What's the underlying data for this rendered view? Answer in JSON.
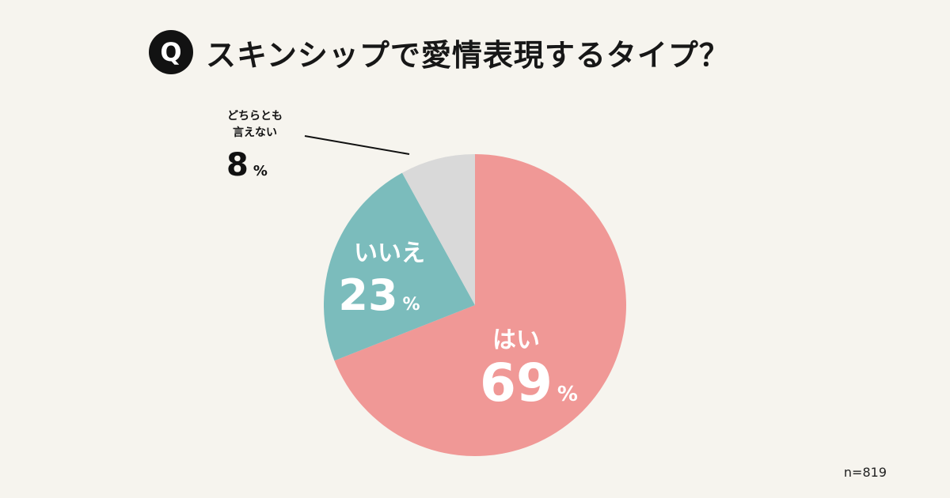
{
  "header": {
    "badge": "Q",
    "title": "スキンシップで愛情表現するタイプ？"
  },
  "sample_size": "n=819",
  "colors": {
    "background": "#f6f4ee",
    "yes": "#f09896",
    "no": "#7bbcbc",
    "neither": "#d9d9d9",
    "dark_text": "#111111",
    "slice_text": "#ffffff"
  },
  "chart_data": {
    "type": "pie",
    "title": "スキンシップで愛情表現するタイプ？",
    "unit": "%",
    "n": 819,
    "start": "12 o'clock",
    "direction": "clockwise",
    "slices": [
      {
        "label": "はい",
        "value": 69,
        "display": "69",
        "unit": "%",
        "color": "#f09896"
      },
      {
        "label": "いいえ",
        "value": 23,
        "display": "23",
        "unit": "%",
        "color": "#7bbcbc"
      },
      {
        "label_lines": [
          "どちらとも",
          "言えない"
        ],
        "value": 8,
        "display": "8",
        "unit": "%",
        "color": "#d9d9d9"
      }
    ]
  }
}
